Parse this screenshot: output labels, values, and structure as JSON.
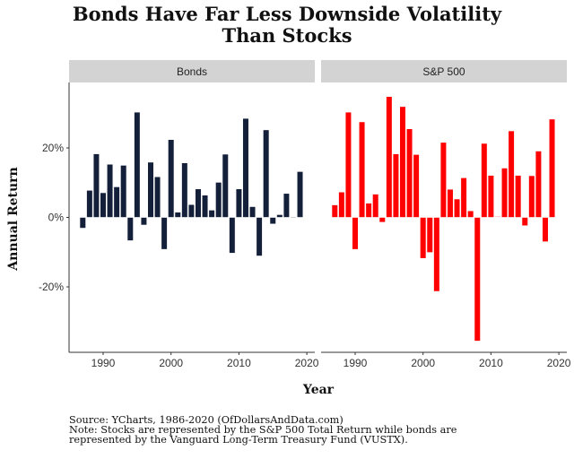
{
  "chart_data": {
    "type": "bar",
    "title": "Bonds Have Far Less Downside Volatility Than Stocks",
    "title_lines": [
      "Bonds Have Far Less Downside Volatility",
      "Than Stocks"
    ],
    "xlabel": "Year",
    "ylabel": "Annual Return",
    "ylim": [
      -38,
      40
    ],
    "xlim": [
      1985.5,
      2020.8
    ],
    "yticks": [
      -20,
      0,
      20
    ],
    "ytick_labels": [
      "-20%",
      "0%",
      "20%"
    ],
    "xticks": [
      1990,
      2000,
      2010,
      2020
    ],
    "xtick_labels": [
      "1990",
      "2000",
      "2010",
      "2020"
    ],
    "grid": false,
    "legend": "none",
    "facets": [
      {
        "name": "Bonds",
        "color": "#14203a",
        "x": [
          1987,
          1988,
          1989,
          1990,
          1991,
          1992,
          1993,
          1994,
          1995,
          1996,
          1997,
          1998,
          1999,
          2000,
          2001,
          2002,
          2003,
          2004,
          2005,
          2006,
          2007,
          2008,
          2009,
          2010,
          2011,
          2012,
          2013,
          2014,
          2015,
          2016,
          2017,
          2018,
          2019
        ],
        "values": [
          -3.1,
          7.8,
          18.3,
          7.1,
          15.3,
          8.8,
          15.0,
          -6.7,
          30.3,
          -2.2,
          15.9,
          11.7,
          -9.2,
          22.4,
          1.5,
          15.7,
          3.7,
          8.2,
          6.4,
          2.1,
          10.1,
          18.2,
          -10.3,
          8.2,
          28.5,
          3.1,
          -11.1,
          25.2,
          -1.9,
          0.8,
          6.9,
          -0.1,
          13.2
        ]
      },
      {
        "name": "S&P 500",
        "color": "#ff0000",
        "x": [
          1987,
          1988,
          1989,
          1990,
          1991,
          1992,
          1993,
          1994,
          1995,
          1996,
          1997,
          1998,
          1999,
          2000,
          2001,
          2002,
          2003,
          2004,
          2005,
          2006,
          2007,
          2008,
          2009,
          2010,
          2011,
          2012,
          2013,
          2014,
          2015,
          2016,
          2017,
          2018,
          2019
        ],
        "values": [
          3.6,
          7.3,
          30.3,
          -9.2,
          27.5,
          4.1,
          6.7,
          -1.4,
          34.8,
          18.3,
          31.9,
          25.5,
          18.1,
          -11.8,
          -10.1,
          -21.3,
          21.6,
          8.1,
          5.3,
          11.4,
          1.9,
          -35.6,
          21.3,
          12.1,
          0.1,
          14.2,
          24.9,
          12.1,
          -2.4,
          12.0,
          19.1,
          -7.0,
          28.3
        ]
      }
    ]
  },
  "footer": {
    "source": "Source:  YCharts, 1986-2020 (OfDollarsAndData.com)",
    "note_line1": "Note: Stocks are represented by the S&P 500 Total Return while bonds are",
    "note_line2": "represented by the Vanguard Long-Term Treasury Fund (VUSTX)."
  },
  "colors": {
    "strip_background": "#d3d3d3",
    "axis_line": "#333333"
  }
}
